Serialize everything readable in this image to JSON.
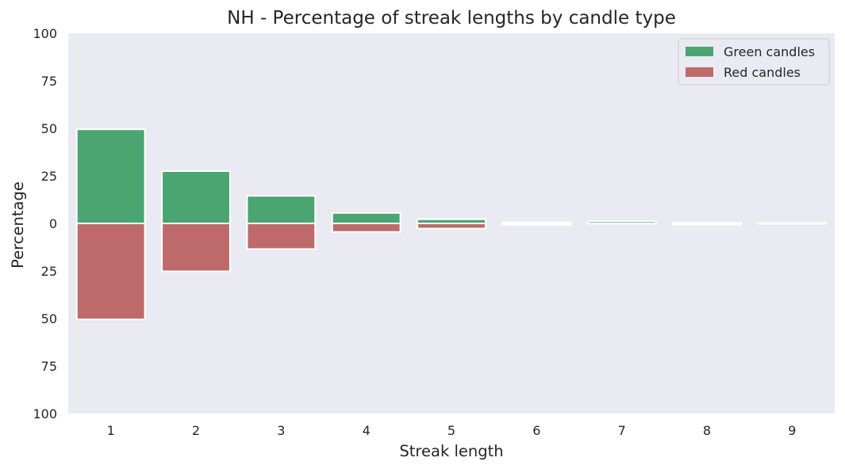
{
  "chart_data": {
    "type": "bar",
    "title": "NH - Percentage of streak lengths by candle type",
    "xlabel": "Streak length",
    "ylabel": "Percentage",
    "categories": [
      "1",
      "2",
      "3",
      "4",
      "5",
      "6",
      "7",
      "8",
      "9"
    ],
    "ylim": [
      -100,
      100
    ],
    "yticks": [
      -100,
      -75,
      -50,
      -25,
      0,
      25,
      50,
      75,
      100
    ],
    "ytick_labels": [
      "100",
      "75",
      "50",
      "25",
      "0",
      "25",
      "50",
      "75",
      "100"
    ],
    "grid": false,
    "legend_position": "top-right",
    "series": [
      {
        "name": "Green candles",
        "color": "#4aa571",
        "values": [
          49.5,
          27.5,
          14.5,
          5.5,
          2.2,
          0.6,
          1.1,
          0.3,
          0.2
        ]
      },
      {
        "name": "Red candles",
        "color": "#bf6a6a",
        "values": [
          -50.5,
          -25.2,
          -13.5,
          -4.5,
          -2.7,
          -0.8,
          0.0,
          -0.6,
          -0.2
        ]
      }
    ]
  }
}
